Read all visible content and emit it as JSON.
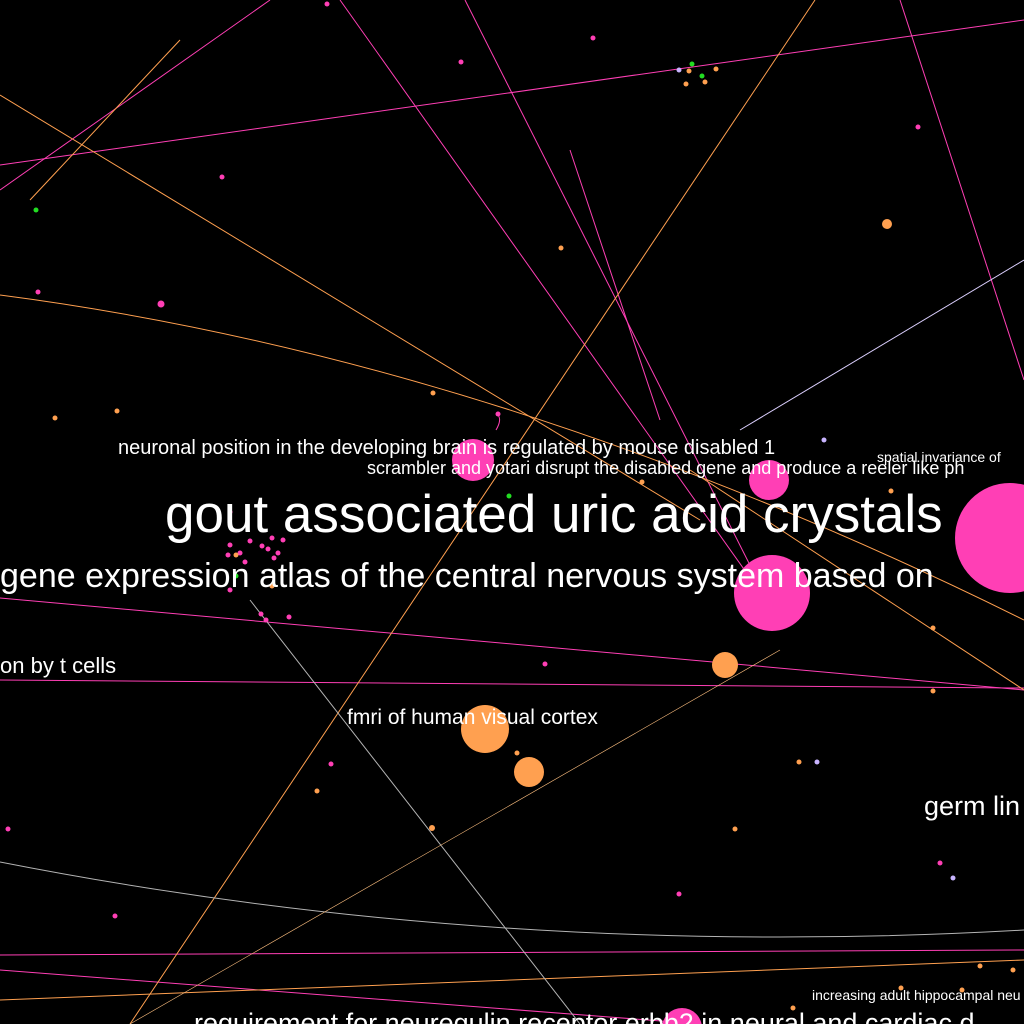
{
  "colors": {
    "background": "#000000",
    "magenta": "#ff3fb5",
    "orange": "#ffa050",
    "green": "#22dd22",
    "lavender": "#c8b4ff",
    "grey": "#b4b4b4",
    "label": "#ffffff"
  },
  "labels": {
    "neuronal_position": "neuronal position in the developing brain is regulated by mouse disabled 1",
    "spatial_invariance": "spatial invariance of",
    "scrambler_yotari": "scrambler and yotari disrupt the disabled gene and produce a reeler like ph",
    "gout": "gout associated uric acid crystals",
    "gene_expression_atlas": "gene expression atlas of the central nervous system based on",
    "t_cells": "on by t cells",
    "fmri": "fmri of human visual cortex",
    "germ": "germ lin",
    "hippocampal": "increasing adult hippocampal neu",
    "neuregulin": "requirement for neuregulin receptor erbb2 in neural and cardiac d"
  }
}
